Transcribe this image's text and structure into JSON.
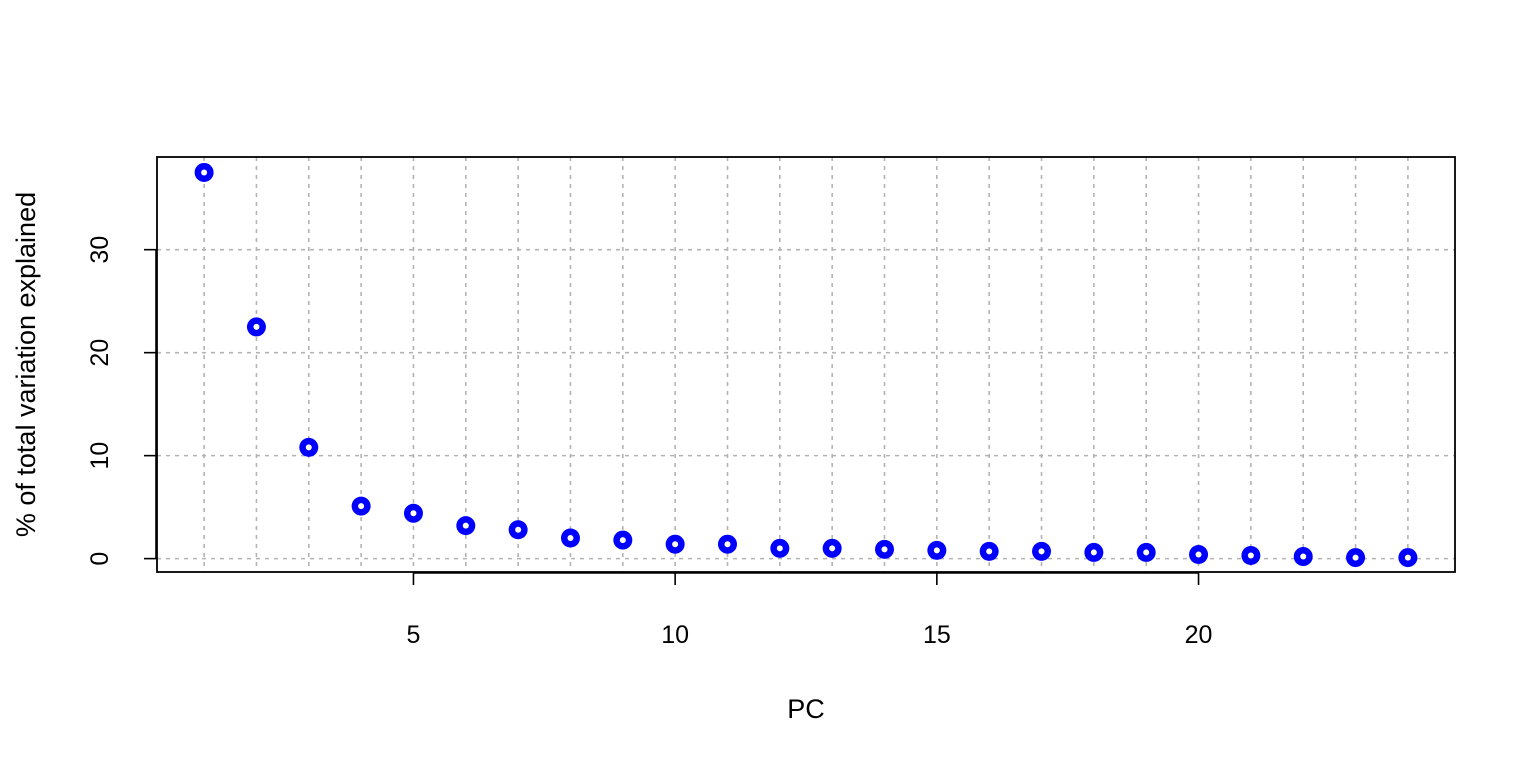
{
  "chart_data": {
    "type": "scatter",
    "title": "",
    "xlabel": "PC",
    "ylabel": "% of total variation explained",
    "xlim": [
      0.1,
      24.9
    ],
    "ylim": [
      -1.3,
      39
    ],
    "x_ticks": [
      5,
      10,
      15,
      20
    ],
    "y_ticks": [
      0,
      10,
      20,
      30
    ],
    "grid": true,
    "grid_x": [
      1,
      2,
      3,
      4,
      5,
      6,
      7,
      8,
      9,
      10,
      11,
      12,
      13,
      14,
      15,
      16,
      17,
      18,
      19,
      20,
      21,
      22,
      23,
      24
    ],
    "grid_y": [
      0,
      10,
      20,
      30
    ],
    "point_color": "#0000ff",
    "x": [
      1,
      2,
      3,
      4,
      5,
      6,
      7,
      8,
      9,
      10,
      11,
      12,
      13,
      14,
      15,
      16,
      17,
      18,
      19,
      20,
      21,
      22,
      23,
      24
    ],
    "y": [
      37.5,
      22.5,
      10.8,
      5.1,
      4.4,
      3.2,
      2.8,
      2.0,
      1.8,
      1.4,
      1.4,
      1.0,
      1.0,
      0.9,
      0.8,
      0.7,
      0.7,
      0.6,
      0.6,
      0.4,
      0.3,
      0.2,
      0.1,
      0.1
    ]
  }
}
